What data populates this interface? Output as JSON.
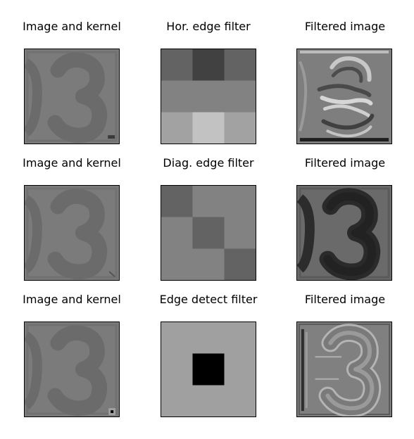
{
  "rows": [
    {
      "image_title": "Image and kernel",
      "filter_title": "Hor. edge filter",
      "result_title": "Filtered image",
      "kernel_grid": [
        [
          "#636363",
          "#414141",
          "#636363"
        ],
        [
          "#828282",
          "#828282",
          "#828282"
        ],
        [
          "#a2a2a2",
          "#c2c2c2",
          "#a2a2a2"
        ]
      ]
    },
    {
      "image_title": "Image and kernel",
      "filter_title": "Diag. edge filter",
      "result_title": "Filtered image",
      "kernel_grid": [
        [
          "#636363",
          "#828282",
          "#828282"
        ],
        [
          "#828282",
          "#636363",
          "#828282"
        ],
        [
          "#828282",
          "#828282",
          "#636363"
        ]
      ]
    },
    {
      "image_title": "Image and kernel",
      "filter_title": "Edge detect filter",
      "result_title": "Filtered image",
      "kernel_grid": [
        [
          "#a0a0a0",
          "#a0a0a0",
          "#a0a0a0"
        ],
        [
          "#a0a0a0",
          "#000000",
          "#a0a0a0"
        ],
        [
          "#a0a0a0",
          "#a0a0a0",
          "#a0a0a0"
        ]
      ]
    }
  ],
  "colors": {
    "image_background": "#7b7b7b",
    "digit_fill": "#6b6b6b",
    "filtered_background": "#7e7e7e"
  }
}
